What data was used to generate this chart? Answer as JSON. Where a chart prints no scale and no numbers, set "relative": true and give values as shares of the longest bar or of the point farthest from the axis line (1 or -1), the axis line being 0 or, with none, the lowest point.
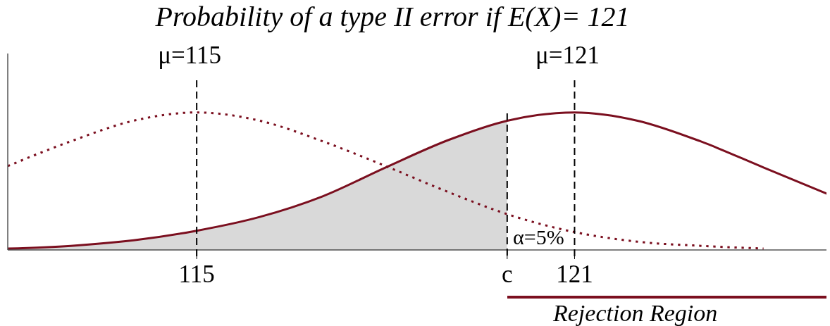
{
  "chart_data": {
    "type": "line",
    "title": "Probability of a type II error if E(X)= 121",
    "relative": true,
    "xlim": [
      112,
      125
    ],
    "xticks": [
      115,
      {
        "value": 119.93,
        "label": "c"
      },
      121
    ],
    "series": [
      {
        "type": "area",
        "color": "#d9d9d9",
        "x": [
          112,
          113,
          114,
          115,
          116,
          117,
          118,
          119,
          119.93
        ],
        "values": [
          0.01,
          0.03,
          0.07,
          0.14,
          0.24,
          0.39,
          0.6,
          0.8,
          0.94
        ]
      },
      {
        "color": "#7b0f1f",
        "line_style": "solid",
        "x": [
          112,
          113,
          114,
          115,
          116,
          117,
          118,
          119,
          119.93,
          121,
          122,
          123,
          124,
          125
        ],
        "values": [
          0.01,
          0.03,
          0.07,
          0.14,
          0.24,
          0.39,
          0.6,
          0.8,
          0.94,
          1,
          0.94,
          0.79,
          0.6,
          0.41
        ]
      },
      {
        "color": "#7b0f1f",
        "line_style": "dotted",
        "x": [
          112,
          113,
          114,
          115,
          116,
          117,
          118,
          119,
          120,
          121,
          122,
          123,
          124
        ],
        "values": [
          0.61,
          0.79,
          0.94,
          1,
          0.94,
          0.79,
          0.61,
          0.42,
          0.25,
          0.13,
          0.06,
          0.03,
          0.01
        ]
      }
    ],
    "ref_lines": [
      {
        "axis": "x",
        "value": 115,
        "label": "μ=115",
        "line_style": "dashed",
        "color": "#000000"
      },
      {
        "axis": "x",
        "value": 121,
        "label": "μ=121",
        "line_style": "dashed",
        "color": "#000000"
      },
      {
        "axis": "x",
        "value": 119.93,
        "line_style": "dashed",
        "color": "#000000"
      }
    ],
    "annotations": [
      "α=5%",
      "Rejection Region"
    ]
  }
}
